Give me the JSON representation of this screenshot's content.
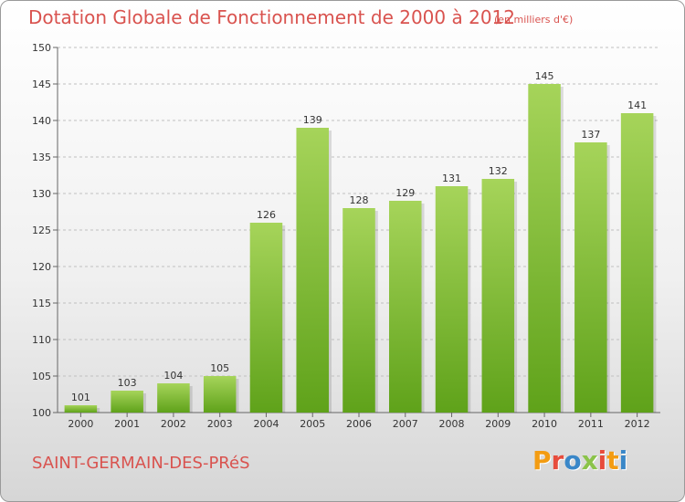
{
  "header": {
    "title": "Dotation Globale de Fonctionnement de 2000 à 2012",
    "unit": "(en milliers d'€)"
  },
  "footer": {
    "commune": "SAINT-GERMAIN-DES-PRéS",
    "logo": {
      "letters": [
        "P",
        "r",
        "o",
        "x",
        "i",
        "t",
        "i"
      ],
      "colors": [
        "#f39c12",
        "#e74c3c",
        "#3a87c8",
        "#8bc34a",
        "#e74c3c",
        "#f39c12",
        "#3a87c8"
      ]
    }
  },
  "colors": {
    "bar_light": "#a6d45a",
    "bar_dark": "#5fa21a",
    "grid": "#bfbfbf",
    "title": "#d9534f"
  },
  "chart_data": {
    "type": "bar",
    "title": "Dotation Globale de Fonctionnement de 2000 à 2012",
    "subtitle": "(en milliers d'€)",
    "xlabel": "",
    "ylabel": "",
    "categories": [
      "2000",
      "2001",
      "2002",
      "2003",
      "2004",
      "2005",
      "2006",
      "2007",
      "2008",
      "2009",
      "2010",
      "2011",
      "2012"
    ],
    "values": [
      101,
      103,
      104,
      105,
      126,
      139,
      128,
      129,
      131,
      132,
      145,
      137,
      141
    ],
    "ylim": [
      100,
      150
    ],
    "yticks": [
      100,
      105,
      110,
      115,
      120,
      125,
      130,
      135,
      140,
      145,
      150
    ],
    "grid": true,
    "legend": "none"
  }
}
